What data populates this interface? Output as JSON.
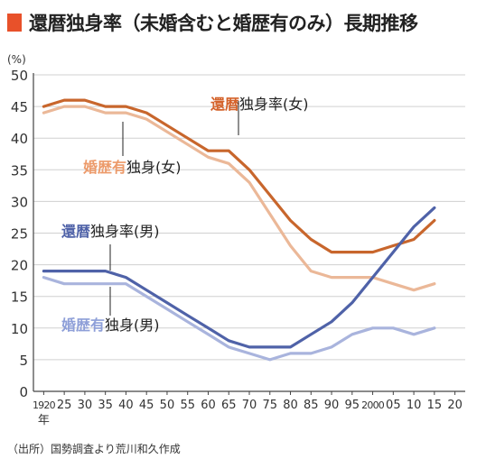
{
  "header": {
    "title": "還暦独身率（未婚含むと婚歴有のみ）長期推移"
  },
  "source": "（出所）国勢調査より荒川和久作成",
  "chart_data": {
    "type": "line",
    "ylabel": "(%)",
    "xlabel": "",
    "year_suffix": "年",
    "ylim": [
      0,
      50
    ],
    "yticks": [
      0,
      5,
      10,
      15,
      20,
      25,
      30,
      35,
      40,
      45,
      50
    ],
    "grid": true,
    "x": [
      1920,
      1925,
      1930,
      1935,
      1940,
      1945,
      1950,
      1955,
      1960,
      1965,
      1970,
      1975,
      1980,
      1985,
      1990,
      1995,
      2000,
      2005,
      2010,
      2015,
      2020
    ],
    "x_tick_labels": [
      "1920",
      "25",
      "30",
      "35",
      "40",
      "45",
      "50",
      "55",
      "60",
      "65",
      "70",
      "75",
      "80",
      "85",
      "90",
      "95",
      "2000",
      "05",
      "10",
      "15",
      "20"
    ],
    "series": [
      {
        "name": "還暦独身率(女)",
        "name_parts": [
          "還暦",
          "独身率(女)"
        ],
        "color": "#c8662c",
        "accent_color": "#d4622a",
        "values": [
          45,
          46,
          46,
          45,
          45,
          44,
          42,
          40,
          38,
          38,
          35,
          31,
          27,
          24,
          22,
          22,
          22,
          23,
          24,
          27,
          null
        ]
      },
      {
        "name": "婚歴有独身(女)",
        "name_parts": [
          "婚歴有",
          "独身(女)"
        ],
        "color": "#ebb898",
        "accent_color": "#ec9a6a",
        "values": [
          44,
          45,
          45,
          44,
          44,
          43,
          41,
          39,
          37,
          36,
          33,
          28,
          23,
          19,
          18,
          18,
          18,
          17,
          16,
          17,
          null
        ]
      },
      {
        "name": "還暦独身率(男)",
        "name_parts": [
          "還暦",
          "独身率(男)"
        ],
        "color": "#4f62a8",
        "accent_color": "#4f62a8",
        "values": [
          19,
          19,
          19,
          19,
          18,
          16,
          14,
          12,
          10,
          8,
          7,
          7,
          7,
          9,
          11,
          14,
          18,
          22,
          26,
          29,
          null
        ]
      },
      {
        "name": "婚歴有独身(男)",
        "name_parts": [
          "婚歴有",
          "独身(男)"
        ],
        "color": "#a9b4dd",
        "accent_color": "#8e9fd8",
        "values": [
          18,
          17,
          17,
          17,
          17,
          15,
          13,
          11,
          9,
          7,
          6,
          5,
          6,
          6,
          7,
          9,
          10,
          10,
          9,
          10,
          null
        ]
      }
    ]
  }
}
